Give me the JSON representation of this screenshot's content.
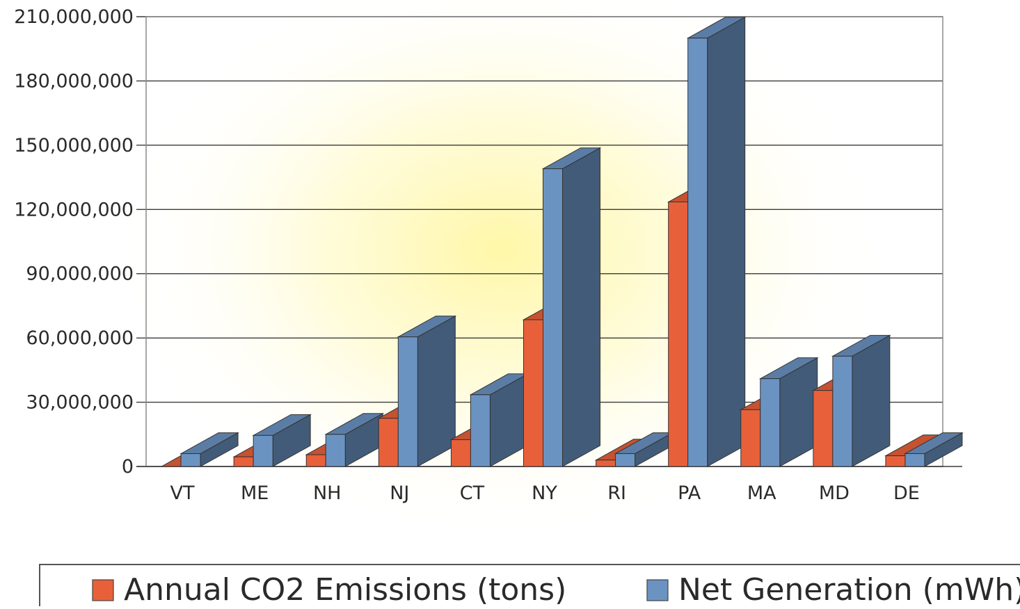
{
  "chart_data": {
    "type": "bar",
    "categories": [
      "VT",
      "ME",
      "NH",
      "NJ",
      "CT",
      "NY",
      "RI",
      "PA",
      "MA",
      "MD",
      "DE"
    ],
    "series": [
      {
        "name": "Annual CO2 Emissions (tons)",
        "color": "#e8603a",
        "values": [
          0,
          4500000,
          5500000,
          22500000,
          12500000,
          68500000,
          3000000,
          123500000,
          26500000,
          35500000,
          5000000
        ]
      },
      {
        "name": "Net Generation (mWh)",
        "color": "#6b93c2",
        "values": [
          6000000,
          14500000,
          15000000,
          60500000,
          33500000,
          139000000,
          6000000,
          200000000,
          41000000,
          51500000,
          6000000
        ]
      }
    ],
    "y_ticks": [
      "0",
      "30,000,000",
      "60,000,000",
      "90,000,000",
      "120,000,000",
      "150,000,000",
      "180,000,000",
      "210,000,000"
    ],
    "ylim": [
      0,
      210000000
    ],
    "grid": true,
    "legend_position": "bottom",
    "style": "3d-column"
  }
}
